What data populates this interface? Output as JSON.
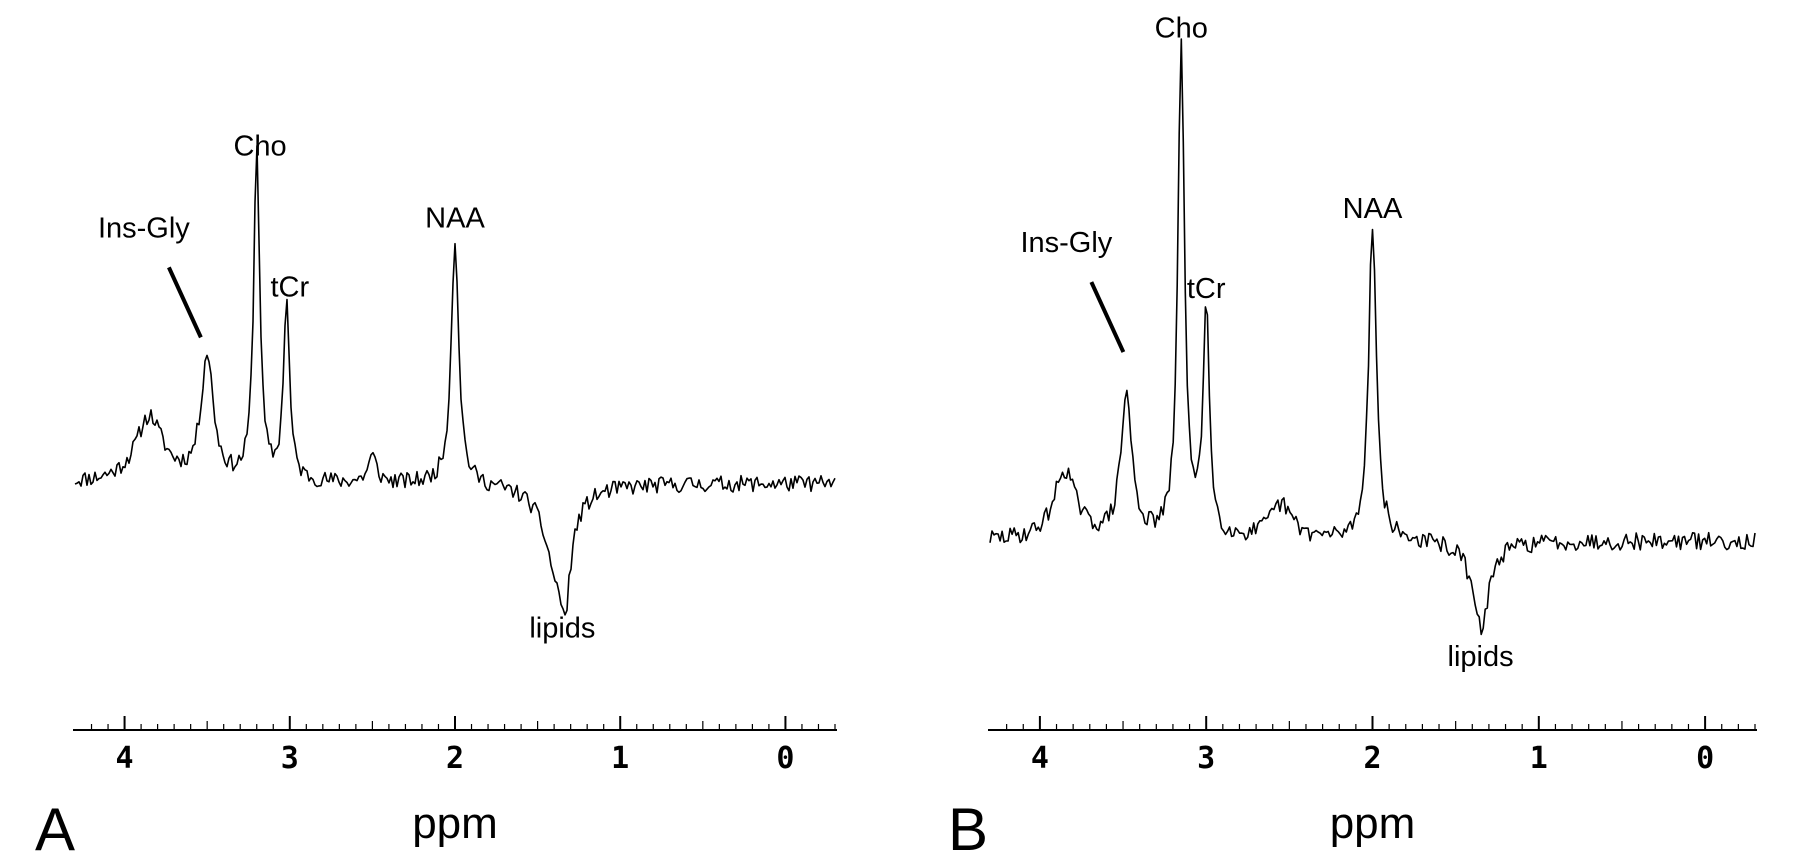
{
  "chart_data": [
    {
      "type": "line",
      "panel_label": "A",
      "xlabel": "ppm",
      "ylabel": "",
      "x_reversed": true,
      "xlim": [
        4.3,
        -0.3
      ],
      "ylim": [
        -0.6,
        1.2
      ],
      "grid": false,
      "x_ticks": [
        4,
        3,
        2,
        1,
        0
      ],
      "x_tick_labels": [
        "4",
        "3",
        "2",
        "1",
        "0"
      ],
      "x_minor_tick_step": 0.1,
      "annotations": [
        {
          "text": "Ins-Gly",
          "x": 3.52,
          "y": 0.43,
          "pointer": true
        },
        {
          "text": "Cho",
          "x": 3.18,
          "y": 1.0
        },
        {
          "text": "tCr",
          "x": 3.0,
          "y": 0.57
        },
        {
          "text": "NAA",
          "x": 2.0,
          "y": 0.78
        },
        {
          "text": "lipids",
          "x": 1.35,
          "y": -0.47
        }
      ],
      "series": [
        {
          "baseline": 0.0,
          "peaks": [
            {
              "x": 3.85,
              "amp": 0.2,
              "width": 0.1
            },
            {
              "x": 3.5,
              "amp": 0.38,
              "width": 0.045
            },
            {
              "x": 3.2,
              "amp": 1.02,
              "width": 0.022
            },
            {
              "x": 3.02,
              "amp": 0.55,
              "width": 0.022
            },
            {
              "x": 2.5,
              "amp": 0.08,
              "width": 0.03
            },
            {
              "x": 2.0,
              "amp": 0.75,
              "width": 0.028
            },
            {
              "x": 1.38,
              "amp": -0.27,
              "width": 0.09
            },
            {
              "x": 1.33,
              "amp": -0.2,
              "width": 0.03
            }
          ],
          "noise": 0.025
        }
      ]
    },
    {
      "type": "line",
      "panel_label": "B",
      "xlabel": "ppm",
      "ylabel": "",
      "x_reversed": true,
      "xlim": [
        4.3,
        -0.3
      ],
      "ylim": [
        -0.4,
        1.4
      ],
      "grid": false,
      "x_ticks": [
        4,
        3,
        2,
        1,
        0
      ],
      "x_tick_labels": [
        "4",
        "3",
        "2",
        "1",
        "0"
      ],
      "x_minor_tick_step": 0.1,
      "annotations": [
        {
          "text": "Ins-Gly",
          "x": 3.48,
          "y": 0.53,
          "pointer": true
        },
        {
          "text": "Cho",
          "x": 3.15,
          "y": 1.45
        },
        {
          "text": "tCr",
          "x": 3.0,
          "y": 0.7
        },
        {
          "text": "NAA",
          "x": 2.0,
          "y": 0.93
        },
        {
          "text": "lipids",
          "x": 1.35,
          "y": -0.36
        }
      ],
      "series": [
        {
          "baseline": 0.0,
          "peaks": [
            {
              "x": 3.85,
              "amp": 0.2,
              "width": 0.08
            },
            {
              "x": 3.48,
              "amp": 0.41,
              "width": 0.04
            },
            {
              "x": 3.15,
              "amp": 1.42,
              "width": 0.024
            },
            {
              "x": 3.0,
              "amp": 0.68,
              "width": 0.022
            },
            {
              "x": 2.55,
              "amp": 0.1,
              "width": 0.08
            },
            {
              "x": 2.0,
              "amp": 0.92,
              "width": 0.028
            },
            {
              "x": 1.35,
              "amp": -0.25,
              "width": 0.06
            }
          ],
          "noise": 0.025
        }
      ]
    }
  ]
}
